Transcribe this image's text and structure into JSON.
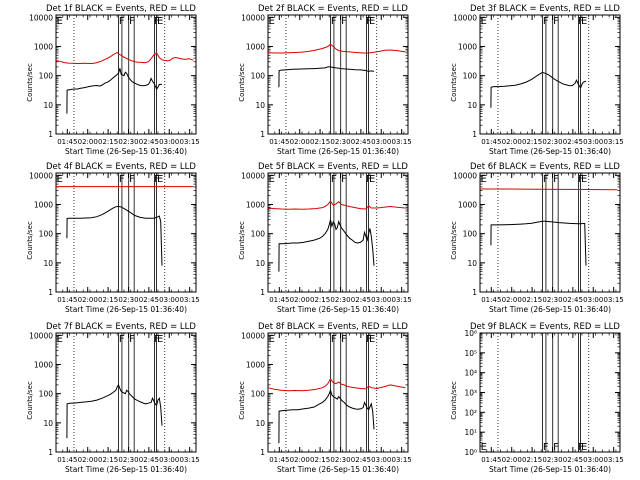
{
  "colors": {
    "events": "#000000",
    "lld": "#e00000",
    "axes": "#000000",
    "background": "#ffffff"
  },
  "common": {
    "ylabel": "Counts/sec",
    "xlabel": "Start Time (26-Sep-15 01:36:40)",
    "xtick_labels": [
      "01:45",
      "02:00",
      "02:15",
      "02:30",
      "02:45",
      "03:00",
      "03:15"
    ],
    "xtick_minutes": [
      8.33,
      23.33,
      38.33,
      53.33,
      68.33,
      83.33,
      98.33
    ],
    "xlim_minutes": [
      0,
      103
    ],
    "ytick_labels_standard": [
      "1",
      "10",
      "100",
      "1000",
      "10000"
    ],
    "dotted_lines_minutes": [
      13.2,
      80.0
    ],
    "solid_lines_minutes": [
      46.0,
      48.5,
      53.5,
      57.5,
      72.5,
      74.0
    ],
    "marker_letters": [
      {
        "letter": "E",
        "x": 0.5
      },
      {
        "letter": "F",
        "x": 46.3
      },
      {
        "letter": "F",
        "x": 53.8
      },
      {
        "letter": "F",
        "x": 72.0
      },
      {
        "letter": "E",
        "x": 74.3
      }
    ]
  },
  "chart_data": [
    {
      "type": "line",
      "title": "Det 1f BLACK = Events, RED = LLD",
      "yscale": "log",
      "ylim": [
        1,
        12000
      ],
      "series": [
        {
          "color": "black",
          "x": [
            8,
            8.2,
            10,
            12,
            14,
            16,
            18,
            20,
            22,
            24,
            26,
            28,
            30,
            32,
            34,
            36,
            38,
            40,
            42,
            44,
            45,
            46,
            47,
            48,
            49,
            50,
            51,
            52,
            53,
            54,
            56,
            58,
            60,
            62,
            64,
            66,
            68,
            69,
            70,
            71,
            72,
            73,
            74,
            75,
            76,
            78
          ],
          "y": [
            5,
            32,
            33,
            34,
            35,
            35,
            37,
            38,
            40,
            42,
            44,
            45,
            46,
            44,
            48,
            55,
            60,
            70,
            85,
            100,
            110,
            120,
            180,
            110,
            105,
            100,
            130,
            120,
            95,
            80,
            62,
            55,
            50,
            46,
            45,
            46,
            50,
            60,
            80,
            65,
            55,
            45,
            35,
            40,
            50,
            50
          ]
        },
        {
          "color": "red",
          "x": [
            0,
            3,
            6,
            9,
            12,
            15,
            18,
            21,
            24,
            27,
            30,
            33,
            36,
            39,
            42,
            45,
            46,
            48,
            50,
            52,
            54,
            56,
            58,
            60,
            62,
            64,
            66,
            68,
            70,
            72,
            74,
            76,
            78,
            80,
            82,
            84,
            86,
            88,
            90,
            92,
            95,
            98,
            101
          ],
          "y": [
            330,
            310,
            280,
            270,
            265,
            260,
            260,
            265,
            260,
            262,
            280,
            310,
            360,
            420,
            520,
            620,
            560,
            500,
            430,
            390,
            350,
            320,
            300,
            290,
            290,
            280,
            280,
            300,
            380,
            520,
            600,
            420,
            350,
            330,
            320,
            340,
            400,
            420,
            400,
            380,
            360,
            380,
            340
          ]
        }
      ]
    },
    {
      "type": "line",
      "title": "Det 2f BLACK = Events, RED = LLD",
      "yscale": "log",
      "ylim": [
        1,
        12000
      ],
      "series": [
        {
          "color": "black",
          "x": [
            8,
            8.2,
            10,
            14,
            18,
            22,
            26,
            30,
            34,
            38,
            42,
            44,
            46,
            48,
            50,
            52,
            54,
            56,
            60,
            64,
            68,
            72,
            74,
            76,
            78
          ],
          "y": [
            40,
            150,
            155,
            160,
            165,
            168,
            170,
            172,
            175,
            178,
            185,
            200,
            200,
            190,
            185,
            180,
            175,
            170,
            165,
            160,
            158,
            150,
            140,
            145,
            140
          ]
        },
        {
          "color": "red",
          "x": [
            0,
            5,
            10,
            15,
            20,
            25,
            30,
            35,
            40,
            44,
            46,
            48,
            50,
            52,
            55,
            60,
            65,
            70,
            74,
            78,
            82,
            86,
            90,
            95,
            101
          ],
          "y": [
            610,
            600,
            600,
            610,
            620,
            640,
            680,
            750,
            850,
            1000,
            1200,
            1000,
            820,
            720,
            680,
            650,
            620,
            600,
            600,
            630,
            680,
            740,
            760,
            720,
            650
          ]
        }
      ]
    },
    {
      "type": "line",
      "title": "Det 3f BLACK = Events, RED = LLD",
      "yscale": "log",
      "ylim": [
        1,
        12000
      ],
      "series": [
        {
          "color": "black",
          "x": [
            8,
            8.2,
            10,
            14,
            18,
            22,
            26,
            30,
            34,
            38,
            42,
            44,
            46,
            48,
            50,
            52,
            54,
            56,
            58,
            60,
            62,
            64,
            66,
            68,
            70,
            71,
            72,
            73,
            74,
            75,
            76,
            78
          ],
          "y": [
            8,
            40,
            42,
            42,
            43,
            45,
            47,
            52,
            60,
            75,
            100,
            115,
            130,
            120,
            110,
            95,
            80,
            70,
            62,
            55,
            50,
            48,
            45,
            46,
            55,
            70,
            55,
            45,
            38,
            50,
            60,
            65
          ]
        }
      ]
    },
    {
      "type": "line",
      "title": "Det 4f BLACK = Events, RED = LLD",
      "yscale": "log",
      "ylim": [
        1,
        12000
      ],
      "series": [
        {
          "color": "black",
          "x": [
            8,
            8.2,
            10,
            14,
            18,
            22,
            26,
            30,
            34,
            38,
            42,
            44,
            46,
            48,
            50,
            54,
            58,
            62,
            66,
            70,
            72,
            74,
            76,
            77,
            78
          ],
          "y": [
            70,
            330,
            335,
            335,
            340,
            345,
            350,
            380,
            450,
            580,
            750,
            830,
            860,
            820,
            720,
            560,
            420,
            360,
            340,
            335,
            340,
            360,
            400,
            260,
            8
          ]
        },
        {
          "color": "red",
          "x": [
            0,
            20,
            40,
            60,
            80,
            101
          ],
          "y": [
            4100,
            4100,
            4100,
            4100,
            4100,
            4100
          ]
        }
      ]
    },
    {
      "type": "line",
      "title": "Det 5f BLACK = Events, RED = LLD",
      "yscale": "log",
      "ylim": [
        1,
        12000
      ],
      "series": [
        {
          "color": "black",
          "x": [
            8,
            8.2,
            10,
            14,
            18,
            22,
            26,
            30,
            34,
            38,
            40,
            42,
            44,
            45,
            46,
            47,
            48,
            49,
            50,
            51,
            52,
            53,
            54,
            56,
            58,
            60,
            62,
            64,
            66,
            68,
            70,
            71,
            72,
            73,
            74,
            75,
            76,
            77,
            78
          ],
          "y": [
            5,
            45,
            45,
            46,
            48,
            48,
            50,
            55,
            60,
            70,
            80,
            100,
            140,
            200,
            300,
            180,
            250,
            220,
            140,
            160,
            260,
            200,
            160,
            120,
            90,
            70,
            60,
            50,
            48,
            50,
            60,
            110,
            80,
            60,
            100,
            150,
            80,
            30,
            8
          ]
        },
        {
          "color": "red",
          "x": [
            0,
            5,
            10,
            15,
            20,
            25,
            30,
            35,
            40,
            42,
            44,
            46,
            48,
            50,
            52,
            54,
            56,
            58,
            60,
            64,
            68,
            72,
            74,
            76,
            80,
            85,
            90,
            95,
            101
          ],
          "y": [
            760,
            720,
            700,
            690,
            700,
            690,
            700,
            720,
            780,
            850,
            1000,
            1300,
            950,
            1050,
            1250,
            1000,
            950,
            900,
            850,
            780,
            720,
            700,
            900,
            760,
            760,
            800,
            850,
            800,
            760
          ]
        }
      ]
    },
    {
      "type": "line",
      "title": "Det 6f BLACK = Events, RED = LLD",
      "yscale": "log",
      "ylim": [
        1,
        12000
      ],
      "series": [
        {
          "color": "black",
          "x": [
            8,
            8.2,
            10,
            14,
            18,
            22,
            26,
            30,
            34,
            38,
            42,
            44,
            46,
            48,
            50,
            54,
            58,
            62,
            66,
            70,
            74,
            77,
            78
          ],
          "y": [
            40,
            200,
            200,
            200,
            202,
            205,
            208,
            212,
            218,
            228,
            245,
            255,
            265,
            265,
            260,
            250,
            240,
            232,
            225,
            222,
            220,
            225,
            8
          ]
        },
        {
          "color": "red",
          "x": [
            0,
            20,
            40,
            60,
            80,
            101
          ],
          "y": [
            3400,
            3400,
            3350,
            3300,
            3250,
            3200
          ]
        }
      ]
    },
    {
      "type": "line",
      "title": "Det 7f BLACK = Events, RED = LLD",
      "yscale": "log",
      "ylim": [
        1,
        12000
      ],
      "series": [
        {
          "color": "black",
          "x": [
            8,
            8.2,
            10,
            14,
            18,
            22,
            26,
            30,
            34,
            38,
            40,
            42,
            44,
            45,
            46,
            47,
            48,
            49,
            50,
            51,
            52,
            53,
            54,
            56,
            58,
            60,
            62,
            64,
            66,
            68,
            70,
            71,
            72,
            73,
            74,
            75,
            76,
            77,
            78
          ],
          "y": [
            3,
            45,
            47,
            48,
            50,
            52,
            55,
            60,
            70,
            85,
            95,
            110,
            130,
            170,
            200,
            150,
            120,
            110,
            105,
            100,
            130,
            120,
            100,
            80,
            65,
            58,
            52,
            48,
            45,
            47,
            50,
            70,
            55,
            45,
            40,
            60,
            70,
            35,
            8
          ]
        }
      ]
    },
    {
      "type": "line",
      "title": "Det 8f BLACK = Events, RED = LLD",
      "yscale": "log",
      "ylim": [
        1,
        12000
      ],
      "series": [
        {
          "color": "black",
          "x": [
            8,
            8.2,
            10,
            14,
            18,
            22,
            26,
            30,
            34,
            38,
            40,
            42,
            44,
            45,
            46,
            47,
            48,
            49,
            50,
            51,
            52,
            53,
            54,
            56,
            58,
            60,
            62,
            64,
            66,
            68,
            70,
            71,
            72,
            73,
            74,
            75,
            76,
            77,
            78
          ],
          "y": [
            2,
            25,
            26,
            27,
            28,
            28,
            30,
            32,
            35,
            45,
            50,
            60,
            80,
            100,
            130,
            90,
            80,
            75,
            70,
            65,
            80,
            70,
            60,
            50,
            40,
            35,
            32,
            30,
            29,
            30,
            33,
            50,
            40,
            32,
            28,
            35,
            45,
            25,
            6
          ]
        },
        {
          "color": "red",
          "x": [
            0,
            5,
            10,
            15,
            20,
            25,
            30,
            35,
            40,
            42,
            44,
            46,
            48,
            50,
            52,
            54,
            56,
            58,
            60,
            64,
            68,
            72,
            74,
            76,
            80,
            85,
            90,
            95,
            101
          ],
          "y": [
            160,
            140,
            130,
            125,
            128,
            126,
            130,
            140,
            160,
            180,
            220,
            320,
            240,
            220,
            250,
            210,
            200,
            180,
            170,
            160,
            150,
            145,
            180,
            160,
            150,
            170,
            200,
            180,
            160
          ]
        }
      ]
    },
    {
      "type": "line",
      "title": "Det 9f BLACK = Events, RED = LLD",
      "yscale": "log",
      "ylim": [
        1,
        1000000
      ],
      "ytick_labels": [
        "10⁰",
        "10¹",
        "10²",
        "10³",
        "10⁴",
        "10⁵",
        "10⁶"
      ],
      "series": []
    }
  ]
}
